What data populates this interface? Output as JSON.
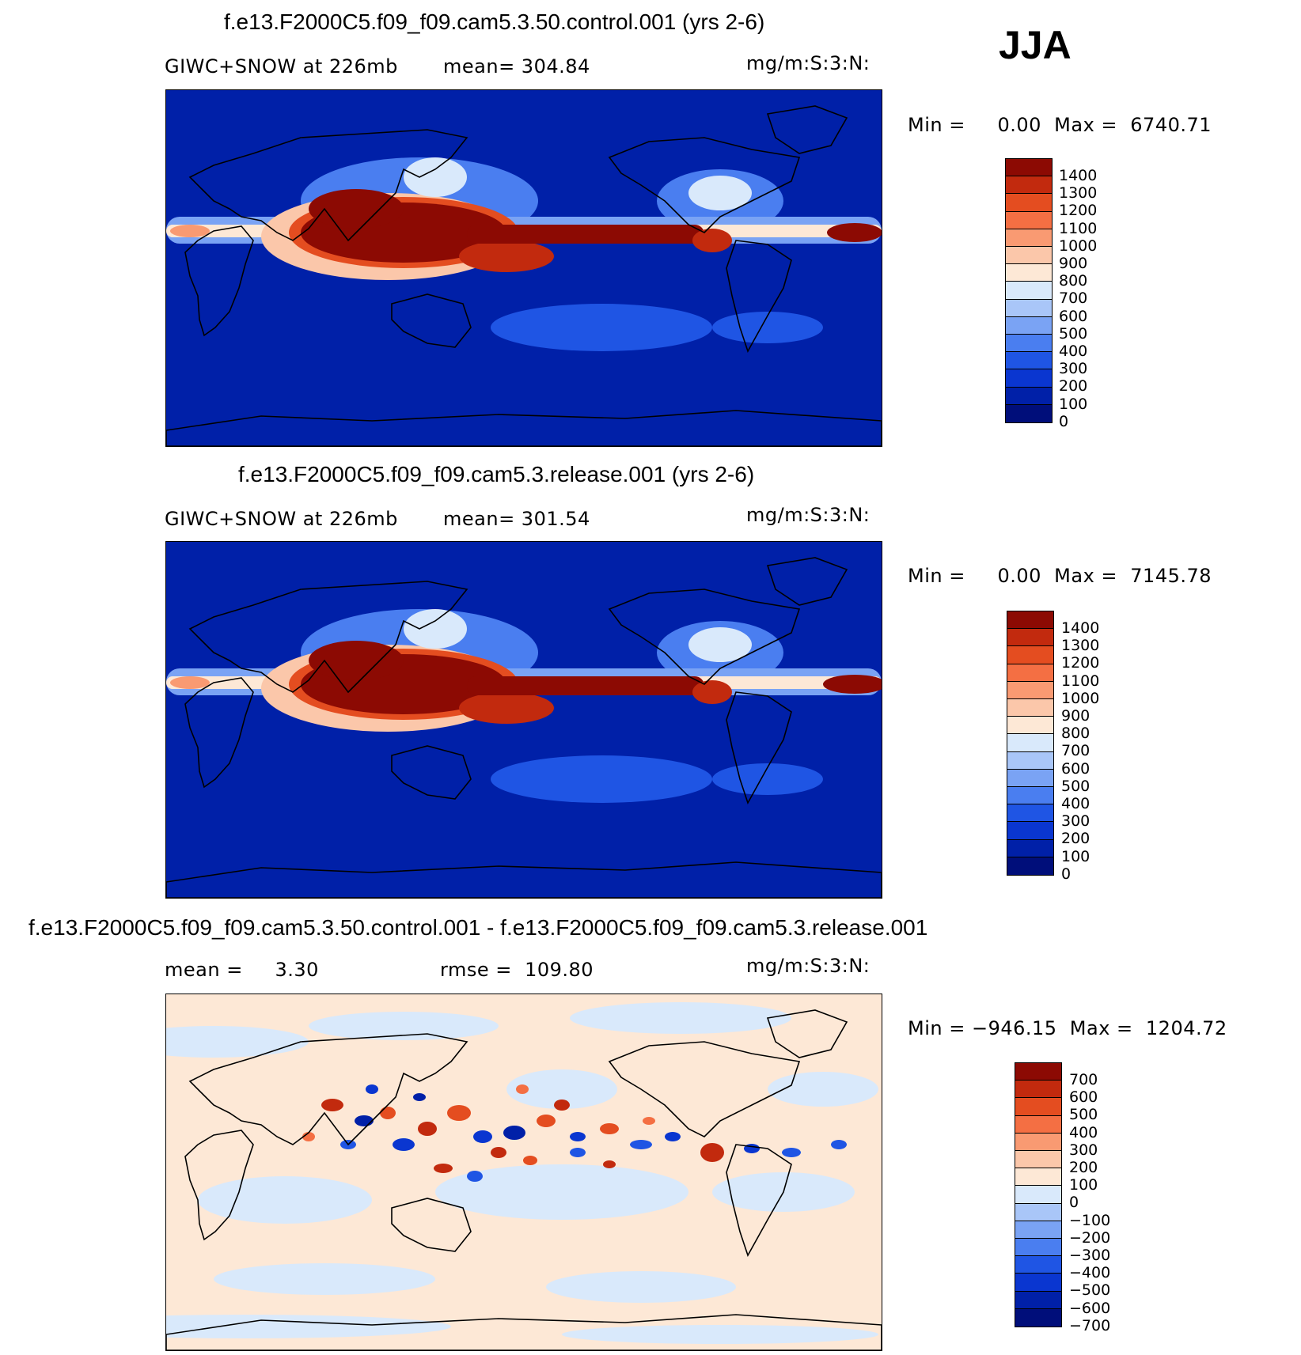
{
  "season": "JJA",
  "colors": {
    "abs_levels": [
      "#000e7a",
      "#0020a8",
      "#0a36d0",
      "#1f55e4",
      "#4a7ef0",
      "#7aa3f4",
      "#a9c6f8",
      "#d9e9fb",
      "#fde8d6",
      "#fbc7aa",
      "#f99a72",
      "#f46f43",
      "#e44d20",
      "#c22a0e",
      "#8c0a03"
    ],
    "diff_levels": [
      "#000e7a",
      "#0020a8",
      "#0a36d0",
      "#1f55e4",
      "#4a7ef0",
      "#7aa3f4",
      "#a9c6f8",
      "#d9e9fb",
      "#fde8d6",
      "#fbc7aa",
      "#f99a72",
      "#f46f43",
      "#e44d20",
      "#c22a0e",
      "#8c0a03"
    ]
  },
  "panels": [
    {
      "title": "f.e13.F2000C5.f09_f09.cam5.3.50.control.001 (yrs 2-6)",
      "variable": "GIWC+SNOW at 226mb",
      "stat": "mean=  304.84",
      "units": "mg/m:S:3:N:",
      "minmax": "Min =     0.00  Max =  6740.71",
      "kind": "abs",
      "levels": [
        "1400",
        "1300",
        "1200",
        "1100",
        "1000",
        "900",
        "800",
        "700",
        "600",
        "500",
        "400",
        "300",
        "200",
        "100",
        "0"
      ]
    },
    {
      "title": "f.e13.F2000C5.f09_f09.cam5.3.release.001 (yrs 2-6)",
      "variable": "GIWC+SNOW at 226mb",
      "stat": "mean=  301.54",
      "units": "mg/m:S:3:N:",
      "minmax": "Min =     0.00  Max =  7145.78",
      "kind": "abs",
      "levels": [
        "1400",
        "1300",
        "1200",
        "1100",
        "1000",
        "900",
        "800",
        "700",
        "600",
        "500",
        "400",
        "300",
        "200",
        "100",
        "0"
      ]
    },
    {
      "title": "f.e13.F2000C5.f09_f09.cam5.3.50.control.001 - f.e13.F2000C5.f09_f09.cam5.3.release.001",
      "variable": "mean =     3.30",
      "stat": "rmse =  109.80",
      "units": "mg/m:S:3:N:",
      "minmax": "Min = −946.15  Max =  1204.72",
      "kind": "diff",
      "levels": [
        "700",
        "600",
        "500",
        "400",
        "300",
        "200",
        "100",
        "0",
        "−100",
        "−200",
        "−300",
        "−400",
        "−500",
        "−600",
        "−700"
      ]
    }
  ],
  "chart_data": [
    {
      "type": "heatmap",
      "title": "f.e13.F2000C5.f09_f09.cam5.3.50.control.001 (yrs 2-6)",
      "variable": "GIWC+SNOW at 226mb",
      "units": "mg/m:S:3:N:",
      "mean": 304.84,
      "min": 0.0,
      "max": 6740.71,
      "contour_levels": [
        0,
        100,
        200,
        300,
        400,
        500,
        600,
        700,
        800,
        900,
        1000,
        1100,
        1200,
        1300,
        1400
      ]
    },
    {
      "type": "heatmap",
      "title": "f.e13.F2000C5.f09_f09.cam5.3.release.001 (yrs 2-6)",
      "variable": "GIWC+SNOW at 226mb",
      "units": "mg/m:S:3:N:",
      "mean": 301.54,
      "min": 0.0,
      "max": 7145.78,
      "contour_levels": [
        0,
        100,
        200,
        300,
        400,
        500,
        600,
        700,
        800,
        900,
        1000,
        1100,
        1200,
        1300,
        1400
      ]
    },
    {
      "type": "heatmap",
      "title": "f.e13.F2000C5.f09_f09.cam5.3.50.control.001 - f.e13.F2000C5.f09_f09.cam5.3.release.001",
      "units": "mg/m:S:3:N:",
      "mean": 3.3,
      "rmse": 109.8,
      "min": -946.15,
      "max": 1204.72,
      "contour_levels": [
        -700,
        -600,
        -500,
        -400,
        -300,
        -200,
        -100,
        0,
        100,
        200,
        300,
        400,
        500,
        600,
        700
      ]
    }
  ]
}
